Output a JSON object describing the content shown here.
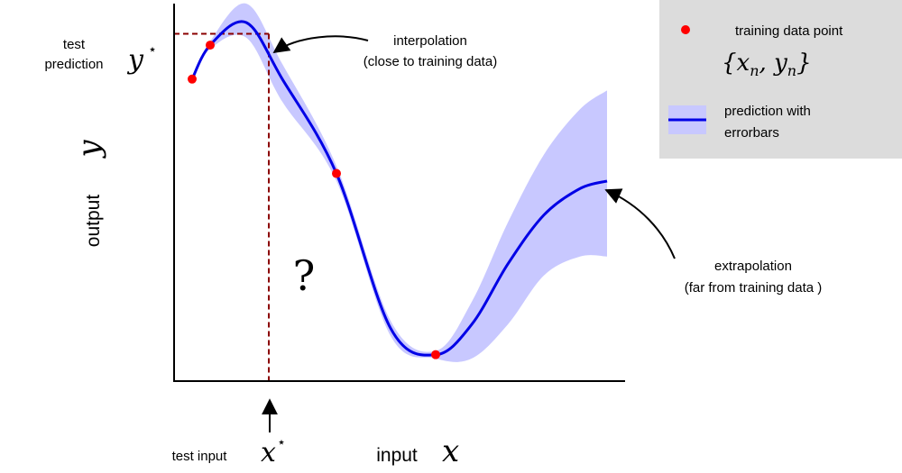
{
  "labels": {
    "test_prediction_line1": "test",
    "test_prediction_line2": "prediction",
    "y_star_symbol": "y",
    "star": "⋆",
    "output_word": "output",
    "output_symbol": "y",
    "test_input": "test input",
    "x_star_symbol": "x",
    "input_word": "input",
    "input_symbol": "x",
    "question_mark": "?",
    "interpolation_line1": "interpolation",
    "interpolation_line2": "(close to training data)",
    "extrapolation_line1": "extrapolation",
    "extrapolation_line2": "(far from training data )"
  },
  "legend": {
    "training_point_label": "training data point",
    "training_point_math_open": "{",
    "training_point_math_x": "x",
    "training_point_math_n1": "n",
    "training_point_math_comma": ", ",
    "training_point_math_y": "y",
    "training_point_math_n2": "n",
    "training_point_math_close": "}",
    "prediction_line1": "prediction with",
    "prediction_line2": "errorbars"
  },
  "colors": {
    "mean_line": "#0000e6",
    "band_fill": "#c8c8ff",
    "training_point": "#ff0000",
    "guide_line": "#8b0000",
    "legend_bg": "#dcdcdc",
    "axes": "#000000"
  },
  "chart_data": {
    "type": "line",
    "title": "",
    "xlabel": "input x",
    "ylabel": "output y",
    "xlim": [
      0,
      1
    ],
    "ylim": [
      0,
      1
    ],
    "series": [
      {
        "name": "prediction with errorbars",
        "x": [
          0.04,
          0.08,
          0.16,
          0.24,
          0.36,
          0.48,
          0.58,
          0.66,
          0.74,
          0.82,
          0.9,
          0.96
        ],
        "y": [
          0.8,
          0.89,
          0.95,
          0.8,
          0.55,
          0.14,
          0.07,
          0.15,
          0.31,
          0.44,
          0.51,
          0.53
        ],
        "upper": [
          0.8,
          0.9,
          1.0,
          0.84,
          0.57,
          0.16,
          0.08,
          0.21,
          0.42,
          0.6,
          0.72,
          0.77
        ],
        "lower": [
          0.8,
          0.88,
          0.91,
          0.74,
          0.53,
          0.12,
          0.06,
          0.06,
          0.15,
          0.28,
          0.33,
          0.33
        ]
      }
    ],
    "training_points": {
      "name": "training data point",
      "x": [
        0.04,
        0.08,
        0.36,
        0.58
      ],
      "y": [
        0.8,
        0.89,
        0.55,
        0.07
      ]
    },
    "test_point": {
      "x": 0.21,
      "y": 0.92
    },
    "grid": false,
    "legend_position": "top-right"
  }
}
